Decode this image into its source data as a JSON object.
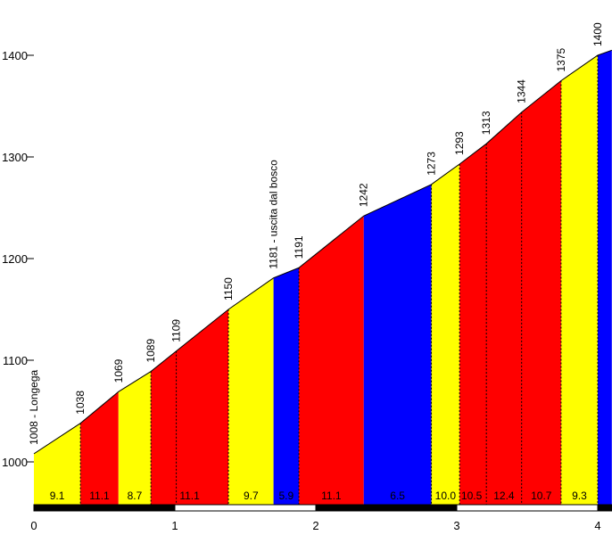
{
  "chart_data": {
    "type": "area",
    "title": "",
    "xlabel": "",
    "ylabel": "",
    "xlim": [
      0,
      4.1
    ],
    "ylim": [
      955,
      1455
    ],
    "x_ticks": [
      0,
      1,
      2,
      3,
      4
    ],
    "y_ticks": [
      1000,
      1100,
      1200,
      1300,
      1400
    ],
    "colors": {
      "yellow": "#ffff00",
      "red": "#ff0000",
      "blue": "#0000ff",
      "black": "#000000"
    },
    "points": [
      {
        "x": 0.0,
        "y": 1008,
        "label": "1008 - Longega"
      },
      {
        "x": 0.33,
        "y": 1038,
        "label": "1038"
      },
      {
        "x": 0.6,
        "y": 1069,
        "label": "1069"
      },
      {
        "x": 0.83,
        "y": 1089,
        "label": "1089"
      },
      {
        "x": 1.01,
        "y": 1109,
        "label": "1109"
      },
      {
        "x": 1.38,
        "y": 1150,
        "label": "1150"
      },
      {
        "x": 1.7,
        "y": 1181,
        "label": "1181 - uscita dal bosco"
      },
      {
        "x": 1.88,
        "y": 1191,
        "label": "1191"
      },
      {
        "x": 2.34,
        "y": 1242,
        "label": "1242"
      },
      {
        "x": 2.82,
        "y": 1273,
        "label": "1273"
      },
      {
        "x": 3.02,
        "y": 1293,
        "label": "1293"
      },
      {
        "x": 3.21,
        "y": 1313,
        "label": "1313"
      },
      {
        "x": 3.46,
        "y": 1344,
        "label": "1344"
      },
      {
        "x": 3.74,
        "y": 1375,
        "label": "1375"
      },
      {
        "x": 4.0,
        "y": 1400,
        "label": "1400"
      },
      {
        "x": 4.1,
        "y": 1405,
        "label": ""
      }
    ],
    "segments": [
      {
        "from": 0,
        "to": 1,
        "grade": "9.1",
        "color": "yellow"
      },
      {
        "from": 1,
        "to": 2,
        "grade": "11.1",
        "color": "red"
      },
      {
        "from": 2,
        "to": 3,
        "grade": "8.7",
        "color": "yellow"
      },
      {
        "from": 3,
        "to": 5,
        "grade": "11.1",
        "color": "red"
      },
      {
        "from": 5,
        "to": 6,
        "grade": "9.7",
        "color": "yellow"
      },
      {
        "from": 6,
        "to": 7,
        "grade": "5.9",
        "color": "blue"
      },
      {
        "from": 7,
        "to": 8,
        "grade": "11.1",
        "color": "red"
      },
      {
        "from": 8,
        "to": 9,
        "grade": "6.5",
        "color": "blue"
      },
      {
        "from": 9,
        "to": 10,
        "grade": "10.0",
        "color": "yellow"
      },
      {
        "from": 10,
        "to": 13,
        "grade": "",
        "color": "red"
      },
      {
        "from": 13,
        "to": 14,
        "grade": "9.3",
        "color": "yellow"
      },
      {
        "from": 14,
        "to": 15,
        "grade": "",
        "color": "blue"
      }
    ],
    "grade_labels": [
      {
        "x": 3.105,
        "text": "10.5"
      },
      {
        "x": 3.335,
        "text": "12.4"
      },
      {
        "x": 3.6,
        "text": "10.7"
      }
    ],
    "dashed_at": [
      1,
      3,
      4,
      5,
      7,
      9,
      10,
      11,
      12,
      13,
      14
    ]
  }
}
